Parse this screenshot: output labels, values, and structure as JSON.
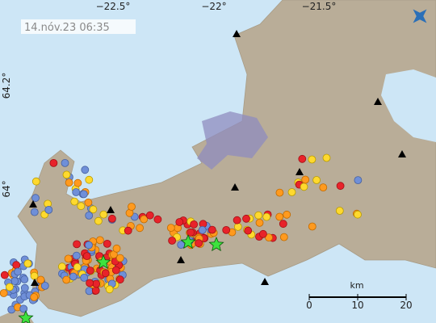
{
  "timestamp": "14.nóv.23 06:35",
  "longitude_labels": [
    "−22.5°",
    "−22°",
    "−21.5°"
  ],
  "latitude_labels": [
    "64.2°",
    "64°"
  ],
  "scale_bar": {
    "unit": "km",
    "ticks": [
      "0",
      "10",
      "20"
    ]
  }
}
